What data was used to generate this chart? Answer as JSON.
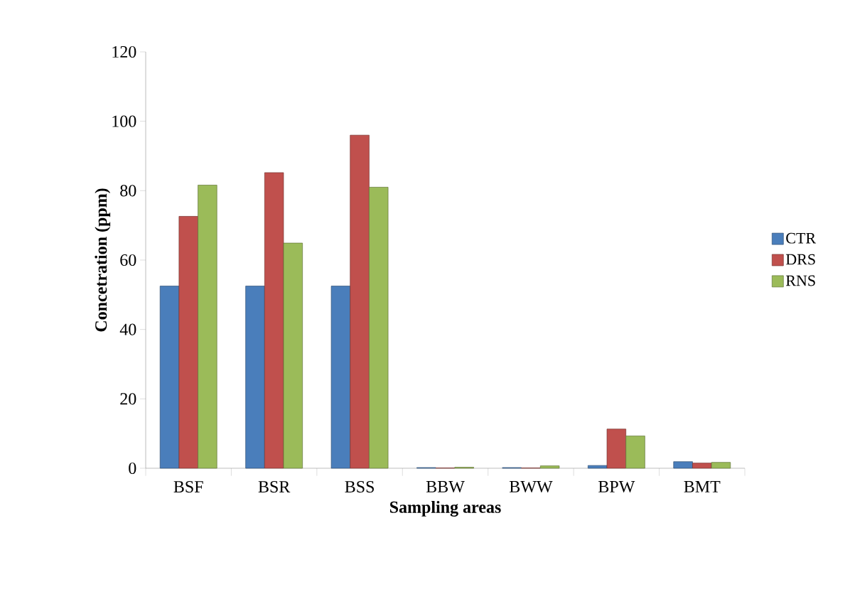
{
  "chart_data": {
    "type": "bar",
    "xlabel": "Sampling areas",
    "ylabel": "Concetration (ppm)",
    "categories": [
      "BSF",
      "BSR",
      "BSS",
      "BBW",
      "BWW",
      "BPW",
      "BMT"
    ],
    "series": [
      {
        "name": "CTR",
        "color": "#4a7ebb",
        "values": [
          52.5,
          52.5,
          52.5,
          0.2,
          0.2,
          0.8,
          1.9
        ]
      },
      {
        "name": "DRS",
        "color": "#c0504d",
        "values": [
          72.6,
          85.2,
          96.0,
          0.1,
          0.1,
          11.3,
          1.5
        ]
      },
      {
        "name": "RNS",
        "color": "#9bbb59",
        "values": [
          81.6,
          64.9,
          81.0,
          0.3,
          0.7,
          9.3,
          1.7
        ]
      }
    ],
    "ylim": [
      0,
      120
    ],
    "yticks": [
      0,
      20,
      40,
      60,
      80,
      100,
      120
    ],
    "grid": false,
    "legend": "right"
  }
}
